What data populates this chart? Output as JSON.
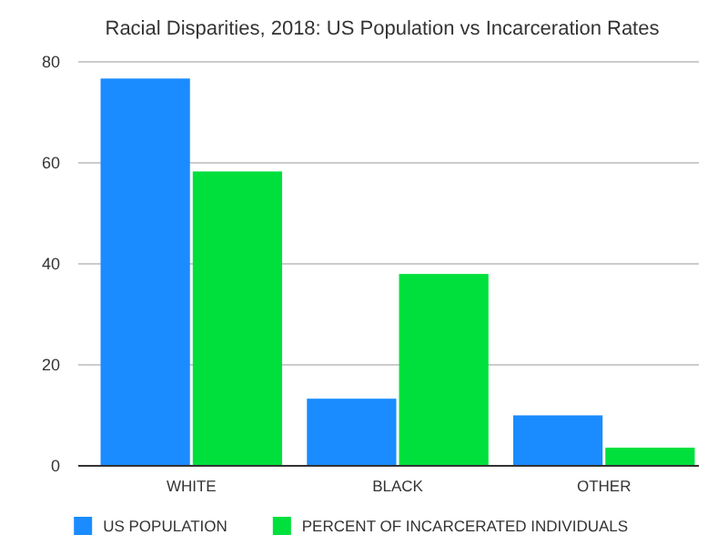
{
  "chart_data": {
    "type": "bar",
    "title": "Racial Disparities, 2018: US Population vs Incarceration Rates",
    "categories": [
      "WHITE",
      "BLACK",
      "OTHER"
    ],
    "series": [
      {
        "name": "US POPULATION",
        "color": "#1a8cff",
        "values": [
          76.7,
          13.3,
          10.0
        ]
      },
      {
        "name": "PERCENT OF INCARCERATED INDIVIDUALS",
        "color": "#00e03c",
        "values": [
          58.3,
          38.0,
          3.6
        ]
      }
    ],
    "ylim": [
      0,
      80
    ],
    "yticks": [
      0,
      20,
      40,
      60,
      80
    ],
    "grid": "y",
    "legend": "bottom"
  }
}
